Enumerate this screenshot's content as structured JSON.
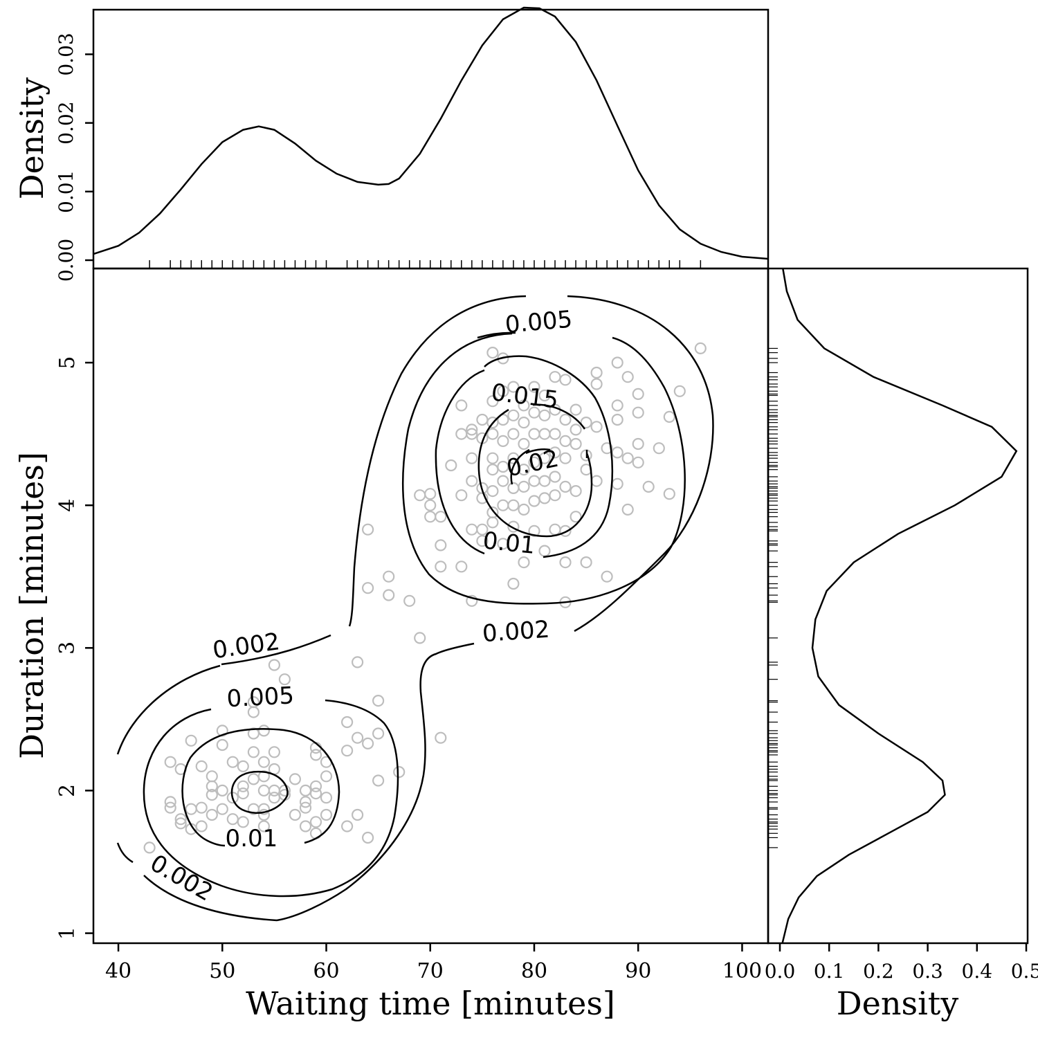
{
  "chart_data": {
    "type": "scatter",
    "dataset_hint": "Old Faithful eruptions",
    "main": {
      "xlabel": "Waiting time [minutes]",
      "ylabel": "Duration [minutes]",
      "xlim": [
        37.6,
        102.5
      ],
      "ylim": [
        0.93,
        5.66
      ],
      "x_ticks": [
        40,
        50,
        60,
        70,
        80,
        90,
        100
      ],
      "y_ticks": [
        1,
        2,
        3,
        4,
        5
      ],
      "points": [
        [
          43,
          1.6
        ],
        [
          45,
          1.88
        ],
        [
          45,
          1.92
        ],
        [
          45,
          2.2
        ],
        [
          46,
          1.77
        ],
        [
          46,
          1.8
        ],
        [
          46,
          2.15
        ],
        [
          47,
          1.73
        ],
        [
          47,
          1.87
        ],
        [
          47,
          2.35
        ],
        [
          48,
          1.75
        ],
        [
          48,
          1.88
        ],
        [
          48,
          2.17
        ],
        [
          49,
          1.83
        ],
        [
          49,
          1.97
        ],
        [
          49,
          2.03
        ],
        [
          49,
          2.1
        ],
        [
          50,
          1.87
        ],
        [
          50,
          2.0
        ],
        [
          50,
          2.32
        ],
        [
          50,
          2.42
        ],
        [
          51,
          1.8
        ],
        [
          51,
          1.95
        ],
        [
          51,
          2.2
        ],
        [
          52,
          1.78
        ],
        [
          52,
          1.98
        ],
        [
          52,
          2.03
        ],
        [
          52,
          2.17
        ],
        [
          53,
          1.87
        ],
        [
          53,
          2.08
        ],
        [
          53,
          2.27
        ],
        [
          53,
          2.4
        ],
        [
          53,
          2.55
        ],
        [
          53,
          2.62
        ],
        [
          54,
          1.75
        ],
        [
          54,
          1.83
        ],
        [
          54,
          1.87
        ],
        [
          54,
          2.0
        ],
        [
          54,
          2.1
        ],
        [
          54,
          2.2
        ],
        [
          54,
          2.42
        ],
        [
          55,
          1.95
        ],
        [
          55,
          2.0
        ],
        [
          55,
          2.15
        ],
        [
          55,
          2.27
        ],
        [
          55,
          2.88
        ],
        [
          56,
          1.97
        ],
        [
          56,
          2.0
        ],
        [
          56,
          2.78
        ],
        [
          57,
          1.83
        ],
        [
          57,
          2.08
        ],
        [
          58,
          1.75
        ],
        [
          58,
          1.88
        ],
        [
          58,
          1.92
        ],
        [
          58,
          2.0
        ],
        [
          59,
          1.7
        ],
        [
          59,
          1.78
        ],
        [
          59,
          1.98
        ],
        [
          59,
          2.03
        ],
        [
          59,
          2.25
        ],
        [
          59,
          2.3
        ],
        [
          60,
          1.83
        ],
        [
          60,
          1.95
        ],
        [
          60,
          2.1
        ],
        [
          60,
          2.2
        ],
        [
          62,
          1.75
        ],
        [
          62,
          2.28
        ],
        [
          62,
          2.48
        ],
        [
          63,
          1.83
        ],
        [
          63,
          2.37
        ],
        [
          63,
          2.9
        ],
        [
          64,
          1.67
        ],
        [
          64,
          2.33
        ],
        [
          64,
          3.42
        ],
        [
          64,
          3.83
        ],
        [
          65,
          2.07
        ],
        [
          65,
          2.4
        ],
        [
          65,
          2.63
        ],
        [
          66,
          3.37
        ],
        [
          66,
          3.5
        ],
        [
          67,
          2.13
        ],
        [
          68,
          3.33
        ],
        [
          69,
          3.07
        ],
        [
          69,
          4.07
        ],
        [
          70,
          3.92
        ],
        [
          70,
          4.0
        ],
        [
          70,
          4.08
        ],
        [
          71,
          2.37
        ],
        [
          71,
          3.57
        ],
        [
          71,
          3.72
        ],
        [
          71,
          3.92
        ],
        [
          72,
          4.28
        ],
        [
          73,
          3.57
        ],
        [
          73,
          4.07
        ],
        [
          73,
          4.5
        ],
        [
          73,
          4.7
        ],
        [
          74,
          3.33
        ],
        [
          74,
          3.83
        ],
        [
          74,
          4.17
        ],
        [
          74,
          4.33
        ],
        [
          74,
          4.5
        ],
        [
          74,
          4.53
        ],
        [
          75,
          3.75
        ],
        [
          75,
          3.83
        ],
        [
          75,
          4.05
        ],
        [
          75,
          4.12
        ],
        [
          75,
          4.47
        ],
        [
          75,
          4.6
        ],
        [
          76,
          3.88
        ],
        [
          76,
          3.95
        ],
        [
          76,
          4.1
        ],
        [
          76,
          4.25
        ],
        [
          76,
          4.33
        ],
        [
          76,
          4.5
        ],
        [
          76,
          4.58
        ],
        [
          76,
          4.73
        ],
        [
          76,
          5.07
        ],
        [
          77,
          3.73
        ],
        [
          77,
          4.0
        ],
        [
          77,
          4.17
        ],
        [
          77,
          4.27
        ],
        [
          77,
          4.45
        ],
        [
          77,
          4.6
        ],
        [
          77,
          4.8
        ],
        [
          77,
          5.03
        ],
        [
          78,
          3.45
        ],
        [
          78,
          3.85
        ],
        [
          78,
          4.0
        ],
        [
          78,
          4.12
        ],
        [
          78,
          4.33
        ],
        [
          78,
          4.5
        ],
        [
          78,
          4.63
        ],
        [
          78,
          4.83
        ],
        [
          79,
          3.6
        ],
        [
          79,
          3.97
        ],
        [
          79,
          4.13
        ],
        [
          79,
          4.25
        ],
        [
          79,
          4.43
        ],
        [
          79,
          4.58
        ],
        [
          79,
          4.7
        ],
        [
          80,
          3.82
        ],
        [
          80,
          4.03
        ],
        [
          80,
          4.17
        ],
        [
          80,
          4.3
        ],
        [
          80,
          4.5
        ],
        [
          80,
          4.65
        ],
        [
          80,
          4.83
        ],
        [
          81,
          3.68
        ],
        [
          81,
          4.05
        ],
        [
          81,
          4.17
        ],
        [
          81,
          4.33
        ],
        [
          81,
          4.5
        ],
        [
          81,
          4.63
        ],
        [
          81,
          4.77
        ],
        [
          82,
          3.83
        ],
        [
          82,
          4.07
        ],
        [
          82,
          4.2
        ],
        [
          82,
          4.37
        ],
        [
          82,
          4.5
        ],
        [
          82,
          4.67
        ],
        [
          82,
          4.9
        ],
        [
          83,
          3.32
        ],
        [
          83,
          3.6
        ],
        [
          83,
          3.82
        ],
        [
          83,
          4.13
        ],
        [
          83,
          4.33
        ],
        [
          83,
          4.45
        ],
        [
          83,
          4.6
        ],
        [
          83,
          4.88
        ],
        [
          84,
          3.92
        ],
        [
          84,
          4.1
        ],
        [
          84,
          4.43
        ],
        [
          84,
          4.53
        ],
        [
          84,
          4.67
        ],
        [
          85,
          3.6
        ],
        [
          85,
          4.25
        ],
        [
          85,
          4.35
        ],
        [
          85,
          4.58
        ],
        [
          86,
          4.17
        ],
        [
          86,
          4.55
        ],
        [
          86,
          4.85
        ],
        [
          86,
          4.93
        ],
        [
          87,
          3.5
        ],
        [
          87,
          4.4
        ],
        [
          88,
          4.15
        ],
        [
          88,
          4.6
        ],
        [
          88,
          4.7
        ],
        [
          88,
          5.0
        ],
        [
          88,
          4.37
        ],
        [
          89,
          3.97
        ],
        [
          89,
          4.33
        ],
        [
          89,
          4.9
        ],
        [
          90,
          4.3
        ],
        [
          90,
          4.43
        ],
        [
          90,
          4.65
        ],
        [
          90,
          4.78
        ],
        [
          91,
          4.13
        ],
        [
          92,
          4.4
        ],
        [
          93,
          4.08
        ],
        [
          93,
          4.62
        ],
        [
          94,
          4.8
        ],
        [
          96,
          5.1
        ]
      ],
      "contours": [
        {
          "label": "0.002"
        },
        {
          "label": "0.005"
        },
        {
          "label": "0.01"
        },
        {
          "label": "0.015"
        },
        {
          "label": "0.02"
        }
      ],
      "contour_label_text": {
        "upper_002": "0.002",
        "upper_005": "0.005",
        "upper_01": "0.01",
        "upper_015": "0.015",
        "upper_02": "0.02",
        "lower_002_left": "0.002",
        "lower_002_right": "0.002",
        "lower_005": "0.005",
        "lower_01": "0.01"
      }
    },
    "top_marginal": {
      "type": "line",
      "ylabel": "Density",
      "ylim": [
        0.0,
        0.0365
      ],
      "y_ticks": [
        "0.00",
        "0.01",
        "0.02",
        "0.03"
      ],
      "y_tick_values": [
        0.0,
        0.01,
        0.02,
        0.03
      ],
      "curve": {
        "x": [
          37.6,
          40,
          42,
          44,
          46,
          48,
          50,
          52,
          53.5,
          55,
          57,
          59,
          61,
          63,
          65,
          66,
          67,
          69,
          71,
          73,
          75,
          77,
          79,
          80.5,
          82,
          84,
          86,
          88,
          90,
          92,
          94,
          96,
          98,
          100,
          102.5
        ],
        "y": [
          0.0009,
          0.0021,
          0.004,
          0.0068,
          0.0103,
          0.014,
          0.0172,
          0.019,
          0.0195,
          0.019,
          0.017,
          0.0145,
          0.0126,
          0.0114,
          0.011,
          0.0111,
          0.0119,
          0.0155,
          0.0206,
          0.0262,
          0.0313,
          0.0351,
          0.0368,
          0.0367,
          0.0355,
          0.0318,
          0.0262,
          0.0196,
          0.0131,
          0.008,
          0.0045,
          0.0024,
          0.0012,
          0.0005,
          0.0002
        ]
      }
    },
    "right_marginal": {
      "type": "line",
      "xlabel": "Density",
      "xlim": [
        0.0,
        0.5
      ],
      "x_ticks": [
        "0.0",
        "0.1",
        "0.2",
        "0.3",
        "0.4",
        "0.5"
      ],
      "x_tick_values": [
        0.0,
        0.1,
        0.2,
        0.3,
        0.4,
        0.5
      ],
      "curve": {
        "y": [
          5.66,
          5.5,
          5.3,
          5.1,
          4.9,
          4.7,
          4.55,
          4.38,
          4.2,
          4.0,
          3.8,
          3.6,
          3.4,
          3.2,
          3.0,
          2.8,
          2.6,
          2.4,
          2.2,
          2.07,
          1.97,
          1.85,
          1.7,
          1.55,
          1.4,
          1.25,
          1.1,
          0.93
        ],
        "x": [
          0.006,
          0.014,
          0.036,
          0.09,
          0.19,
          0.33,
          0.43,
          0.48,
          0.45,
          0.355,
          0.24,
          0.15,
          0.095,
          0.072,
          0.066,
          0.078,
          0.12,
          0.2,
          0.29,
          0.33,
          0.335,
          0.3,
          0.22,
          0.14,
          0.075,
          0.038,
          0.017,
          0.005
        ]
      }
    }
  }
}
